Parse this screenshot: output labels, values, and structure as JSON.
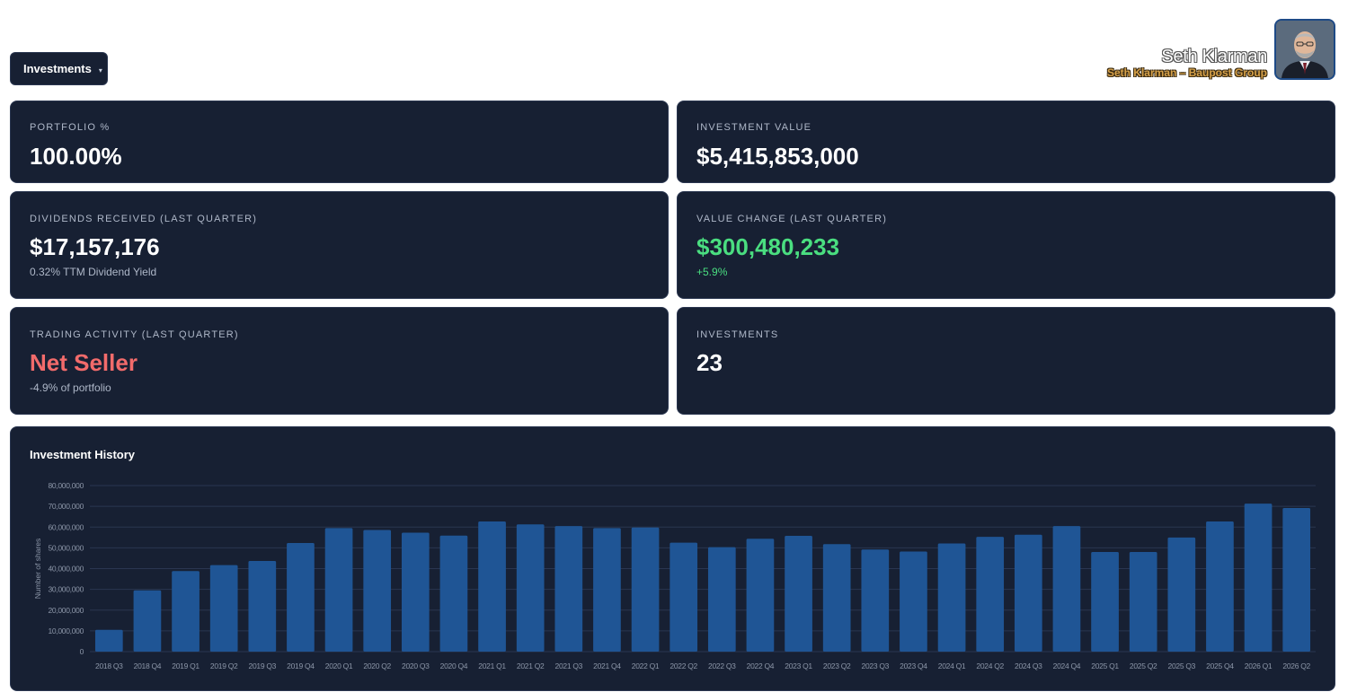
{
  "header": {
    "dropdown_label": "Investments",
    "profile": {
      "name": "Seth Klarman",
      "subtitle": "Seth Klarman – Baupost Group"
    }
  },
  "stats": {
    "portfolio": {
      "label": "PORTFOLIO %",
      "value": "100.00%"
    },
    "investment_value": {
      "label": "INVESTMENT VALUE",
      "value": "$5,415,853,000"
    },
    "dividends": {
      "label": "DIVIDENDS RECEIVED (LAST QUARTER)",
      "value": "$17,157,176",
      "sub": "0.32% TTM Dividend Yield"
    },
    "value_change": {
      "label": "VALUE CHANGE (LAST QUARTER)",
      "value": "$300,480,233",
      "sub": "+5.9%"
    },
    "trading": {
      "label": "TRADING ACTIVITY (LAST QUARTER)",
      "value": "Net Seller",
      "sub": "-4.9% of portfolio"
    },
    "investments": {
      "label": "INVESTMENTS",
      "value": "23"
    }
  },
  "colors": {
    "positive": "#4ade80",
    "negative": "#f26b6b",
    "bar": "#1f5595",
    "card_bg": "#172033"
  },
  "chart_data": {
    "type": "bar",
    "title": "Investment History",
    "xlabel": "",
    "ylabel": "Number of shares",
    "ylim": [
      0,
      80000000
    ],
    "yticks": [
      0,
      10000000,
      20000000,
      30000000,
      40000000,
      50000000,
      60000000,
      70000000,
      80000000
    ],
    "ytick_labels": [
      "0",
      "10,000,000",
      "20,000,000",
      "30,000,000",
      "40,000,000",
      "50,000,000",
      "60,000,000",
      "70,000,000",
      "80,000,000"
    ],
    "grid": true,
    "categories": [
      "2018 Q3",
      "2018 Q4",
      "2019 Q1",
      "2019 Q2",
      "2019 Q3",
      "2019 Q4",
      "2020 Q1",
      "2020 Q2",
      "2020 Q3",
      "2020 Q4",
      "2021 Q1",
      "2021 Q2",
      "2021 Q3",
      "2021 Q4",
      "2022 Q1",
      "2022 Q2",
      "2022 Q3",
      "2022 Q4",
      "2023 Q1",
      "2023 Q2",
      "2023 Q3",
      "2023 Q4",
      "2024 Q1",
      "2024 Q2",
      "2024 Q3",
      "2024 Q4",
      "2025 Q1",
      "2025 Q2",
      "2025 Q3",
      "2025 Q4",
      "2026 Q1",
      "2026 Q2"
    ],
    "values": [
      10500000,
      29500000,
      38800000,
      41700000,
      43700000,
      52300000,
      59500000,
      58600000,
      57300000,
      55900000,
      62700000,
      61300000,
      60500000,
      59500000,
      59800000,
      52500000,
      50300000,
      54400000,
      55800000,
      51800000,
      49200000,
      48200000,
      52100000,
      55300000,
      56300000,
      60500000,
      48000000,
      48000000,
      55000000,
      62700000,
      71300000,
      69200000
    ]
  }
}
